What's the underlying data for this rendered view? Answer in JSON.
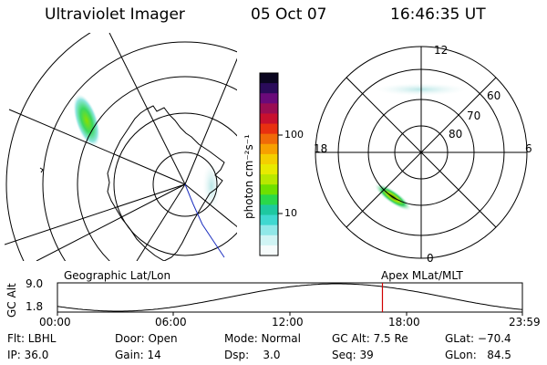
{
  "header": {
    "title": "Ultraviolet Imager",
    "date": "05 Oct 07",
    "time": "16:46:35 UT"
  },
  "colorbar": {
    "unit_label": "photon cm⁻²s⁻¹",
    "ticks": [
      "100",
      "10"
    ],
    "colors": [
      "#0b0620",
      "#2a0b5a",
      "#6a0a7a",
      "#9a0d52",
      "#c8102e",
      "#e83010",
      "#f06a08",
      "#f7a000",
      "#f4cf00",
      "#e8ea00",
      "#b8e800",
      "#6ee000",
      "#2ad84a",
      "#1ec8a0",
      "#40d8d0",
      "#90e8e8",
      "#d0f4f4",
      "#f6fbfb"
    ]
  },
  "left_map": {
    "label": "Geographic Lat/Lon"
  },
  "right_map": {
    "label": "Apex MLat/MLT",
    "mlt_labels": {
      "top": "12",
      "bottom": "0",
      "left": "18",
      "right": "6"
    },
    "lat_labels": [
      "60",
      "70",
      "80"
    ]
  },
  "altitude_plot": {
    "axis_title": "GC Alt",
    "y_max": "9.0",
    "y_min": "1.8",
    "time_ticks": [
      "00:00",
      "06:00",
      "12:00",
      "18:00",
      "23:59"
    ],
    "marker_color": "#d00000",
    "current_time_fraction": 0.699
  },
  "status": {
    "flt": "Flt: LBHL",
    "ip": "IP: 36.0",
    "door": "Door: Open",
    "gain": "Gain: 14",
    "mode": "Mode: Normal",
    "dsp": "Dsp:    3.0",
    "gc_alt": "GC Alt: 7.5 Re",
    "seq": "Seq: 39",
    "glat": "GLat: −70.4",
    "glon": "GLon:   84.5"
  }
}
